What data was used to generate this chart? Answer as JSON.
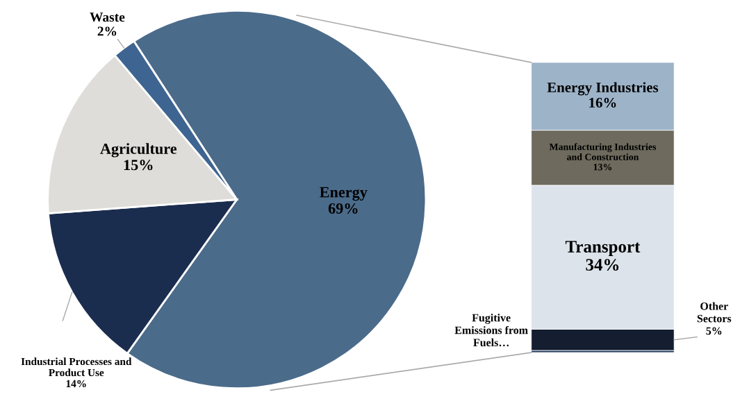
{
  "chart_data": [
    {
      "type": "pie",
      "categories": [
        "Energy",
        "Industrial Processes and\nProduct Use",
        "Agriculture",
        "Waste"
      ],
      "values": [
        69,
        14,
        15,
        2
      ],
      "value_labels": [
        "69%",
        "14%",
        "15%",
        "2%"
      ],
      "colors": [
        "#4b6b8a",
        "#1b2d4f",
        "#deddd9",
        "#3e6591"
      ]
    },
    {
      "type": "bar",
      "stacked": true,
      "categories": [
        null
      ],
      "series": [
        {
          "name": "Fugitive\nEmissions from\nFuels…",
          "color": "#1f3a5f",
          "values": [
            0.5
          ],
          "value_labels": [
            null
          ]
        },
        {
          "name": "Other\nSectors",
          "color": "#141e30",
          "values": [
            5
          ],
          "value_labels": [
            "5%"
          ]
        },
        {
          "name": "Transport",
          "color": "#dce3ea",
          "values": [
            34
          ],
          "value_labels": [
            "34%"
          ]
        },
        {
          "name": "Manufacturing Industries\nand Construction",
          "color": "#6e6a5d",
          "values": [
            13
          ],
          "value_labels": [
            "13%"
          ]
        },
        {
          "name": "Energy Industries",
          "color": "#9db3c8",
          "values": [
            16
          ],
          "value_labels": [
            "16%"
          ]
        }
      ]
    }
  ]
}
